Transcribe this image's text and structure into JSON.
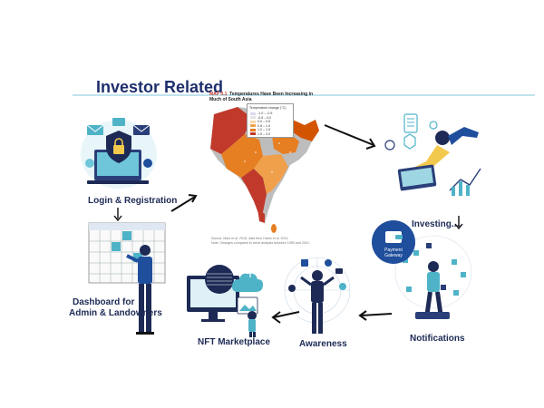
{
  "page": {
    "title": "Investor Related"
  },
  "steps": {
    "login": "Login & Registration",
    "dashboard_line1": "Dashboard for",
    "dashboard_line2": "Admin & Landowners",
    "investing": "Investing....",
    "notifications": "Notifications",
    "awareness": "Awareness",
    "nft": "NFT Marketplace"
  },
  "map": {
    "code": "MAP 0.1",
    "caption": "Temperatures Have Been Increasing in Much of South Asia",
    "legend_title": "Temperature change (°C)",
    "legend_items": [
      "-1.0 – -0.5",
      "-0.5 – 0.0",
      "0.0 – 0.5",
      "0.5 – 1.0",
      "1.0 – 1.5",
      "1.5 – 3.0"
    ],
    "source_line1": "Source: Mani et al. 2018, data from Harris et al. 2014.",
    "source_line2": "Note: Changes compared to trend analysis between 1950 and 2010."
  },
  "badge": {
    "line1": "Payment",
    "line2": "Gateway"
  },
  "colors": {
    "title": "#1f2f6e",
    "accent_teal": "#4fb3c8",
    "navy": "#1f4e9c",
    "map_red": "#c0392b",
    "map_orange": "#e67e22",
    "map_grey": "#bdbdbd"
  }
}
